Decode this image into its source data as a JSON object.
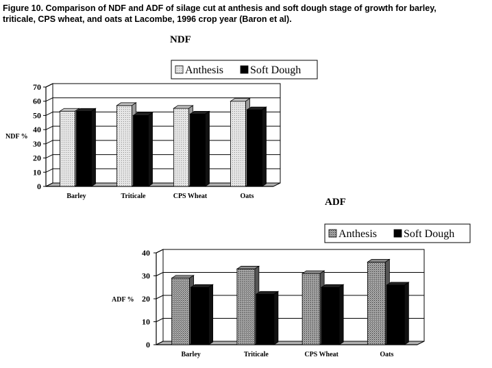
{
  "caption": {
    "lead": "Figure 10.",
    "text": "Comparison of NDF and ADF of silage cut at anthesis and soft dough stage of growth for barley, triticale, CPS wheat, and oats at Lacombe, 1996 crop year (Baron et al)."
  },
  "colors": {
    "anthesis_ndf": "#d8d8d8",
    "anthesis_adf": "#9a9a9a",
    "soft_dough": "#000000",
    "floor": "#b0b0b0",
    "grid": "#000000"
  },
  "chart_data": [
    {
      "type": "bar",
      "title": "NDF",
      "ylabel": "NDF %",
      "xlabel": "",
      "categories": [
        "Barley",
        "Triticale",
        "CPS Wheat",
        "Oats"
      ],
      "series": [
        {
          "name": "Anthesis",
          "values": [
            53,
            57,
            55,
            60
          ]
        },
        {
          "name": "Soft Dough",
          "values": [
            53,
            50,
            51,
            54
          ]
        }
      ],
      "ylim": [
        0,
        70
      ],
      "yticks": [
        0,
        10,
        20,
        30,
        40,
        50,
        60,
        70
      ],
      "grid": true,
      "legend": "top"
    },
    {
      "type": "bar",
      "title": "ADF",
      "ylabel": "ADF %",
      "xlabel": "",
      "categories": [
        "Barley",
        "Triticale",
        "CPS Wheat",
        "Oats"
      ],
      "series": [
        {
          "name": "Anthesis",
          "values": [
            29,
            33,
            31,
            36
          ]
        },
        {
          "name": "Soft Dough",
          "values": [
            25,
            22,
            25,
            26
          ]
        }
      ],
      "ylim": [
        0,
        40
      ],
      "yticks": [
        0,
        10,
        20,
        30,
        40
      ],
      "grid": true,
      "legend": "top-right"
    }
  ]
}
